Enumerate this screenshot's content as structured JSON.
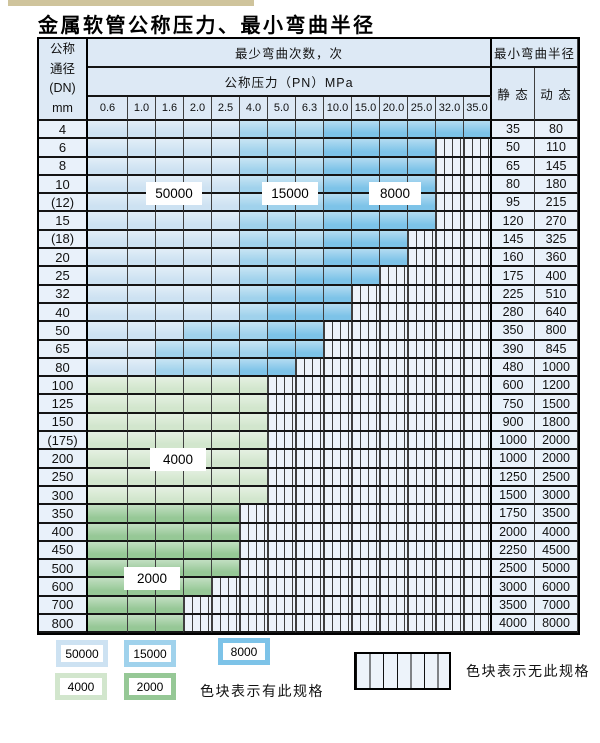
{
  "page": {
    "title": "金属软管公称压力、最小弯曲半径"
  },
  "colors": {
    "b1": "#cde2f2",
    "b2": "#a0d2ec",
    "b3": "#7dc3e8",
    "g1": "#d2e6cd",
    "g2": "#96c896",
    "hbg": "#edf3fa",
    "lab": "#e9f1fa",
    "hdr": "#dde9f5"
  },
  "table": {
    "header": {
      "dn_header": "公称\n通径\n(DN)\nmm",
      "cycles_title": "最少弯曲次数，次",
      "pressure_title": "公称压力（PN）MPa",
      "radius_title": "最小弯曲半径",
      "static_label": "静 态",
      "dynamic_label": "动 态",
      "pressures": [
        "0.6",
        "1.0",
        "1.6",
        "2.0",
        "2.5",
        "4.0",
        "5.0",
        "6.3",
        "10.0",
        "15.0",
        "20.0",
        "25.0",
        "32.0",
        "35.0"
      ]
    },
    "rows": [
      {
        "dn": "4",
        "static": "35",
        "dynamic": "80",
        "bands": [
          [
            "b1",
            5
          ],
          [
            "b2",
            3
          ],
          [
            "b3",
            6
          ]
        ]
      },
      {
        "dn": "6",
        "static": "50",
        "dynamic": "110",
        "bands": [
          [
            "b1",
            5
          ],
          [
            "b2",
            3
          ],
          [
            "b3",
            4
          ]
        ]
      },
      {
        "dn": "8",
        "static": "65",
        "dynamic": "145",
        "bands": [
          [
            "b1",
            5
          ],
          [
            "b2",
            3
          ],
          [
            "b3",
            4
          ]
        ]
      },
      {
        "dn": "10",
        "static": "80",
        "dynamic": "180",
        "bands": [
          [
            "b1",
            5
          ],
          [
            "b2",
            3
          ],
          [
            "b3",
            4
          ]
        ]
      },
      {
        "dn": "(12)",
        "static": "95",
        "dynamic": "215",
        "bands": [
          [
            "b1",
            5
          ],
          [
            "b2",
            3
          ],
          [
            "b3",
            4
          ]
        ]
      },
      {
        "dn": "15",
        "static": "120",
        "dynamic": "270",
        "bands": [
          [
            "b1",
            5
          ],
          [
            "b2",
            3
          ],
          [
            "b3",
            4
          ]
        ]
      },
      {
        "dn": "(18)",
        "static": "145",
        "dynamic": "325",
        "bands": [
          [
            "b1",
            5
          ],
          [
            "b2",
            3
          ],
          [
            "b3",
            3
          ]
        ]
      },
      {
        "dn": "20",
        "static": "160",
        "dynamic": "360",
        "bands": [
          [
            "b1",
            5
          ],
          [
            "b2",
            3
          ],
          [
            "b3",
            3
          ]
        ]
      },
      {
        "dn": "25",
        "static": "175",
        "dynamic": "400",
        "bands": [
          [
            "b1",
            5
          ],
          [
            "b2",
            2
          ],
          [
            "b3",
            3
          ]
        ]
      },
      {
        "dn": "32",
        "static": "225",
        "dynamic": "510",
        "bands": [
          [
            "b1",
            5
          ],
          [
            "b2",
            1
          ],
          [
            "b3",
            3
          ]
        ]
      },
      {
        "dn": "40",
        "static": "280",
        "dynamic": "640",
        "bands": [
          [
            "b1",
            5
          ],
          [
            "b2",
            1
          ],
          [
            "b3",
            3
          ]
        ]
      },
      {
        "dn": "50",
        "static": "350",
        "dynamic": "800",
        "bands": [
          [
            "b1",
            3
          ],
          [
            "b2",
            3
          ],
          [
            "b3",
            2
          ]
        ]
      },
      {
        "dn": "65",
        "static": "390",
        "dynamic": "845",
        "bands": [
          [
            "b1",
            2
          ],
          [
            "b2",
            4
          ],
          [
            "b3",
            2
          ]
        ]
      },
      {
        "dn": "80",
        "static": "480",
        "dynamic": "1000",
        "bands": [
          [
            "b1",
            2
          ],
          [
            "b2",
            3
          ],
          [
            "b3",
            2
          ]
        ]
      },
      {
        "dn": "100",
        "static": "600",
        "dynamic": "1200",
        "bands": [
          [
            "g1",
            6
          ]
        ]
      },
      {
        "dn": "125",
        "static": "750",
        "dynamic": "1500",
        "bands": [
          [
            "g1",
            6
          ]
        ]
      },
      {
        "dn": "150",
        "static": "900",
        "dynamic": "1800",
        "bands": [
          [
            "g1",
            6
          ]
        ]
      },
      {
        "dn": "(175)",
        "static": "1000",
        "dynamic": "2000",
        "bands": [
          [
            "g1",
            6
          ]
        ]
      },
      {
        "dn": "200",
        "static": "1000",
        "dynamic": "2000",
        "bands": [
          [
            "g1",
            6
          ]
        ]
      },
      {
        "dn": "250",
        "static": "1250",
        "dynamic": "2500",
        "bands": [
          [
            "g1",
            6
          ]
        ]
      },
      {
        "dn": "300",
        "static": "1500",
        "dynamic": "3000",
        "bands": [
          [
            "g1",
            6
          ]
        ]
      },
      {
        "dn": "350",
        "static": "1750",
        "dynamic": "3500",
        "bands": [
          [
            "g2",
            5
          ]
        ]
      },
      {
        "dn": "400",
        "static": "2000",
        "dynamic": "4000",
        "bands": [
          [
            "g2",
            5
          ]
        ]
      },
      {
        "dn": "450",
        "static": "2250",
        "dynamic": "4500",
        "bands": [
          [
            "g2",
            5
          ]
        ]
      },
      {
        "dn": "500",
        "static": "2500",
        "dynamic": "5000",
        "bands": [
          [
            "g2",
            5
          ]
        ]
      },
      {
        "dn": "600",
        "static": "3000",
        "dynamic": "6000",
        "bands": [
          [
            "g2",
            4
          ]
        ]
      },
      {
        "dn": "700",
        "static": "3500",
        "dynamic": "7000",
        "bands": [
          [
            "g2",
            3
          ]
        ]
      },
      {
        "dn": "800",
        "static": "4000",
        "dynamic": "8000",
        "bands": [
          [
            "g2",
            3
          ]
        ]
      }
    ]
  },
  "overlays": [
    {
      "text": "50000"
    },
    {
      "text": "15000"
    },
    {
      "text": "8000"
    },
    {
      "text": "4000"
    },
    {
      "text": "2000"
    }
  ],
  "legend": {
    "swatches": [
      {
        "label": "50000",
        "shade": "b1"
      },
      {
        "label": "15000",
        "shade": "b2"
      },
      {
        "label": "8000",
        "shade": "b3"
      },
      {
        "label": "4000",
        "shade": "g1"
      },
      {
        "label": "2000",
        "shade": "g2"
      }
    ],
    "has_spec_text": "色块表示有此规格",
    "no_spec_text": "色块表示无此规格"
  },
  "chart_data": {
    "type": "table",
    "title": "金属软管公称压力、最小弯曲半径",
    "columns": [
      "公称通径 DN (mm)",
      "最大公称压力 PN (MPa)",
      "最小弯曲半径 静态",
      "最小弯曲半径 动态"
    ],
    "cycle_shades": {
      "50000": "lightest blue",
      "15000": "medium blue",
      "8000": "dark blue",
      "4000": "light green",
      "2000": "dark green"
    },
    "rows": [
      [
        "4",
        "35.0",
        35,
        80
      ],
      [
        "6",
        "25.0",
        50,
        110
      ],
      [
        "8",
        "25.0",
        65,
        145
      ],
      [
        "10",
        "25.0",
        80,
        180
      ],
      [
        "(12)",
        "25.0",
        95,
        215
      ],
      [
        "15",
        "25.0",
        120,
        270
      ],
      [
        "(18)",
        "20.0",
        145,
        325
      ],
      [
        "20",
        "20.0",
        160,
        360
      ],
      [
        "25",
        "15.0",
        175,
        400
      ],
      [
        "32",
        "10.0",
        225,
        510
      ],
      [
        "40",
        "10.0",
        280,
        640
      ],
      [
        "50",
        "6.3",
        350,
        800
      ],
      [
        "65",
        "6.3",
        390,
        845
      ],
      [
        "80",
        "5.0",
        480,
        1000
      ],
      [
        "100",
        "4.0",
        600,
        1200
      ],
      [
        "125",
        "4.0",
        750,
        1500
      ],
      [
        "150",
        "4.0",
        900,
        1800
      ],
      [
        "(175)",
        "4.0",
        1000,
        2000
      ],
      [
        "200",
        "4.0",
        1000,
        2000
      ],
      [
        "250",
        "4.0",
        1250,
        2500
      ],
      [
        "300",
        "4.0",
        1500,
        3000
      ],
      [
        "350",
        "2.5",
        1750,
        3500
      ],
      [
        "400",
        "2.5",
        2000,
        4000
      ],
      [
        "450",
        "2.5",
        2250,
        4500
      ],
      [
        "500",
        "2.5",
        2500,
        5000
      ],
      [
        "600",
        "2.0",
        3000,
        6000
      ],
      [
        "700",
        "1.6",
        3500,
        7000
      ],
      [
        "800",
        "1.6",
        4000,
        8000
      ]
    ]
  }
}
